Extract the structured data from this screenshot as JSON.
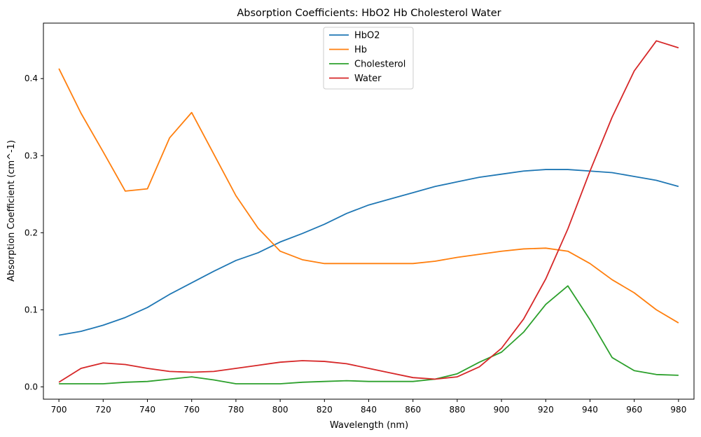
{
  "chart_data": {
    "type": "line",
    "title": "Absorption Coefficients: HbO2 Hb Cholesterol Water",
    "xlabel": "Wavelength (nm)",
    "ylabel": "Absorption Coefficient (cm^-1)",
    "xlim": [
      693,
      987
    ],
    "ylim": [
      -0.016,
      0.472
    ],
    "xticks": [
      700,
      720,
      740,
      760,
      780,
      800,
      820,
      840,
      860,
      880,
      900,
      920,
      940,
      960,
      980
    ],
    "yticks": [
      0.0,
      0.1,
      0.2,
      0.3,
      0.4
    ],
    "ytick_labels": [
      "0.0",
      "0.1",
      "0.2",
      "0.3",
      "0.4"
    ],
    "grid": false,
    "legend_position": "top-center",
    "x": [
      700,
      710,
      720,
      730,
      740,
      750,
      760,
      770,
      780,
      790,
      800,
      810,
      820,
      830,
      840,
      850,
      860,
      870,
      880,
      890,
      900,
      910,
      920,
      930,
      940,
      950,
      960,
      970,
      980
    ],
    "series": [
      {
        "name": "HbO2",
        "color": "#1f77b4",
        "values": [
          0.067,
          0.072,
          0.08,
          0.09,
          0.103,
          0.12,
          0.135,
          0.15,
          0.164,
          0.174,
          0.188,
          0.199,
          0.211,
          0.225,
          0.236,
          0.244,
          0.252,
          0.26,
          0.266,
          0.272,
          0.276,
          0.28,
          0.282,
          0.282,
          0.28,
          0.278,
          0.273,
          0.268,
          0.26
        ]
      },
      {
        "name": "Hb",
        "color": "#ff7f0e",
        "values": [
          0.413,
          0.355,
          0.305,
          0.254,
          0.257,
          0.323,
          0.356,
          0.302,
          0.248,
          0.206,
          0.176,
          0.165,
          0.16,
          0.16,
          0.16,
          0.16,
          0.16,
          0.163,
          0.168,
          0.172,
          0.176,
          0.179,
          0.18,
          0.176,
          0.16,
          0.139,
          0.122,
          0.1,
          0.083
        ]
      },
      {
        "name": "Cholesterol",
        "color": "#2ca02c",
        "values": [
          0.004,
          0.004,
          0.004,
          0.006,
          0.007,
          0.01,
          0.013,
          0.009,
          0.004,
          0.004,
          0.004,
          0.006,
          0.007,
          0.008,
          0.007,
          0.007,
          0.007,
          0.01,
          0.017,
          0.032,
          0.045,
          0.071,
          0.107,
          0.131,
          0.087,
          0.038,
          0.021,
          0.016,
          0.015
        ]
      },
      {
        "name": "Water",
        "color": "#d62728",
        "values": [
          0.006,
          0.024,
          0.031,
          0.029,
          0.024,
          0.02,
          0.019,
          0.02,
          0.024,
          0.028,
          0.032,
          0.034,
          0.033,
          0.03,
          0.024,
          0.018,
          0.012,
          0.01,
          0.013,
          0.026,
          0.05,
          0.088,
          0.14,
          0.205,
          0.28,
          0.35,
          0.41,
          0.449,
          0.44
        ]
      }
    ]
  }
}
